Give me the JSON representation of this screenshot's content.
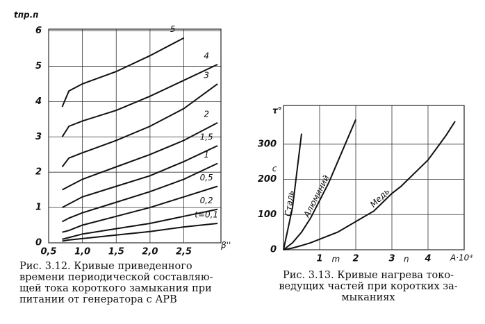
{
  "chart_data": [
    {
      "type": "line",
      "y_label": "tпр.п",
      "x_label": "β''",
      "x": [
        0.7,
        0.8,
        1.0,
        1.5,
        2.0,
        2.5,
        3.0
      ],
      "xlim": [
        0.5,
        3.05
      ],
      "ylim": [
        0,
        6.05
      ],
      "xticks": [
        {
          "value": 0.5,
          "label": "0,5"
        },
        {
          "value": 1.0,
          "label": "1,0"
        },
        {
          "value": 1.5,
          "label": "1,5"
        },
        {
          "value": 2.0,
          "label": "2,0"
        },
        {
          "value": 2.5,
          "label": "2,5"
        }
      ],
      "yticks": [
        0,
        1,
        2,
        3,
        4,
        5,
        6
      ],
      "grid": true,
      "color": "#111",
      "series": [
        {
          "name": "5",
          "values": [
            3.85,
            4.3,
            4.5,
            4.85,
            5.3,
            5.8,
            null
          ]
        },
        {
          "name": "4",
          "values": [
            3.0,
            3.3,
            3.45,
            3.75,
            4.15,
            4.6,
            5.05
          ]
        },
        {
          "name": "3",
          "values": [
            2.15,
            2.4,
            2.55,
            2.9,
            3.3,
            3.8,
            4.5
          ]
        },
        {
          "name": "2",
          "values": [
            1.5,
            1.6,
            1.8,
            2.15,
            2.5,
            2.9,
            3.4
          ]
        },
        {
          "name": "1,5",
          "values": [
            1.0,
            1.1,
            1.3,
            1.6,
            1.9,
            2.3,
            2.75
          ]
        },
        {
          "name": "1",
          "values": [
            0.6,
            0.7,
            0.85,
            1.15,
            1.45,
            1.8,
            2.25
          ]
        },
        {
          "name": "0,5",
          "values": [
            0.3,
            0.35,
            0.5,
            0.75,
            1.0,
            1.3,
            1.6
          ]
        },
        {
          "name": "0,2",
          "values": [
            0.1,
            0.15,
            0.25,
            0.4,
            0.55,
            0.75,
            0.95
          ]
        },
        {
          "name": "t=0,1",
          "values": [
            0.05,
            0.08,
            0.12,
            0.22,
            0.32,
            0.45,
            0.55
          ]
        }
      ],
      "caption": [
        "Рис. 3.12. Кривые приведенного",
        "времени периодической составляю-",
        "щей тока короткого замыкания при",
        "питании от генератора с АРВ"
      ]
    },
    {
      "type": "line",
      "y_label": "τ°",
      "x_label": "A·10⁴",
      "x": [
        0,
        0.25,
        0.5,
        0.75,
        1.0,
        1.25,
        1.5,
        1.75,
        2.0,
        2.25,
        2.5,
        2.75,
        3.0,
        3.25,
        3.5,
        3.75,
        4.0,
        4.25,
        4.5,
        4.75,
        5.0
      ],
      "xlim": [
        0,
        5
      ],
      "ylim": [
        0,
        410
      ],
      "xticks": [
        1,
        2,
        3,
        4
      ],
      "yticks": [
        0,
        100,
        200,
        300
      ],
      "grid": true,
      "color": "#111",
      "series": [
        {
          "name": "Сталь",
          "values": [
            0,
            120,
            330,
            null,
            null,
            null,
            null,
            null,
            null,
            null,
            null,
            null,
            null,
            null,
            null,
            null,
            null,
            null,
            null,
            null,
            null
          ]
        },
        {
          "name": "Алюминий",
          "values": [
            0,
            20,
            50,
            90,
            140,
            190,
            250,
            310,
            370,
            null,
            null,
            null,
            null,
            null,
            null,
            null,
            null,
            null,
            null,
            null,
            null
          ]
        },
        {
          "name": "Медь",
          "values": [
            0,
            5,
            12,
            20,
            30,
            40,
            50,
            65,
            80,
            95,
            110,
            135,
            160,
            180,
            205,
            230,
            255,
            290,
            325,
            365,
            null
          ]
        }
      ],
      "annotations": [
        "m",
        "n",
        "c"
      ],
      "caption": [
        "Рис. 3.13. Кривые нагрева токо-",
        "ведущих частей при коротких за-",
        "мыканиях"
      ]
    }
  ]
}
